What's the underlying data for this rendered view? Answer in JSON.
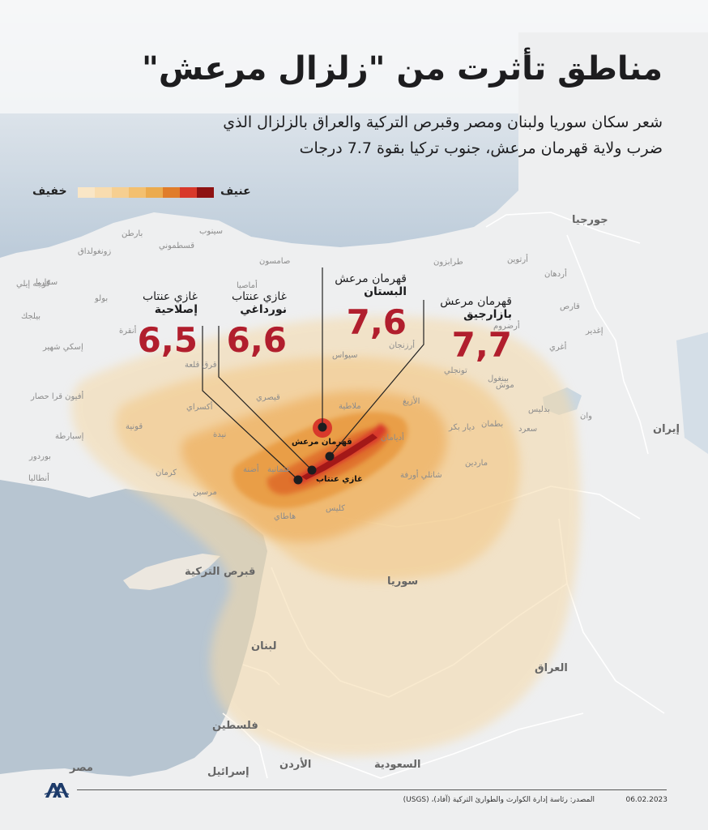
{
  "title": "مناطق تأثرت من \"زلزال مرعش\"",
  "subtitle_line1": "شعر سكان سوريا ولبنان ومصر وقبرص التركية والعراق بالزلزال الذي",
  "subtitle_line2": "ضرب ولاية قهرمان مرعش، جنوب تركيا بقوة 7.7 درجات",
  "legend": {
    "strong": "عنيف",
    "weak": "خفيف",
    "colors": [
      "#f9e6c6",
      "#f8dcaf",
      "#f6cf91",
      "#f3c06f",
      "#ebab4e",
      "#e07d2a",
      "#d8392b",
      "#8e1212"
    ]
  },
  "earthquakes": [
    {
      "province": "غازي عنتاب",
      "district": "إصلاحية",
      "magnitude": "6,5"
    },
    {
      "province": "غازي عنتاب",
      "district": "نورداغي",
      "magnitude": "6,6"
    },
    {
      "province": "قهرمان مرعش",
      "district": "البستان",
      "magnitude": "7,6"
    },
    {
      "province": "قهرمان مرعش",
      "district": "بازارجيق",
      "magnitude": "7,7"
    }
  ],
  "countries": {
    "georgia": "جورجيا",
    "iran": "إيران",
    "syria": "سوريا",
    "iraq": "العراق",
    "cyprus": "قبرص التركية",
    "lebanon": "لبنان",
    "palestine": "فلسطين",
    "israel": "إسرائيل",
    "jordan": "الأردن",
    "saudi": "السعودية",
    "egypt": "مصر"
  },
  "main_labels": {
    "kahramanmaras": "قهرمان مرعش",
    "gaziantep": "غازي عنتاب"
  },
  "provinces": [
    "بارطن",
    "زونغولداق",
    "قسطموني",
    "سينوب",
    "صامسون",
    "أماصيا",
    "طرابزون",
    "أردهان",
    "أرتوين",
    "بولو",
    "أنقرة",
    "سيواس",
    "أرزنجان",
    "أرضروم",
    "قارص",
    "أغري",
    "إغدير",
    "ملاطية",
    "الأزيغ",
    "تونجلي",
    "بينغول",
    "موش",
    "وان",
    "قونية",
    "أكسراي",
    "نيدة",
    "قيصري",
    "أضنة",
    "عثمانية",
    "هاطاي",
    "مرسين",
    "كرمان",
    "ديار بكر",
    "ماردين",
    "شانلي أورفة",
    "أديامان",
    "إسكي شهير",
    "أفيون قرا حصار",
    "بيلجك",
    "سقاريا",
    "كوجه إيلي",
    "إسبارطة",
    "أنطاليا",
    "بوردور",
    "بطمان",
    "سعرد",
    "بدليس",
    "قرق قلعة",
    "كليس"
  ],
  "footer": {
    "date": "06.02.2023",
    "source": "المصدر: رئاسة إدارة الكوارث والطوارئ التركية (آفاد)، (USGS)",
    "logo": "AA"
  }
}
